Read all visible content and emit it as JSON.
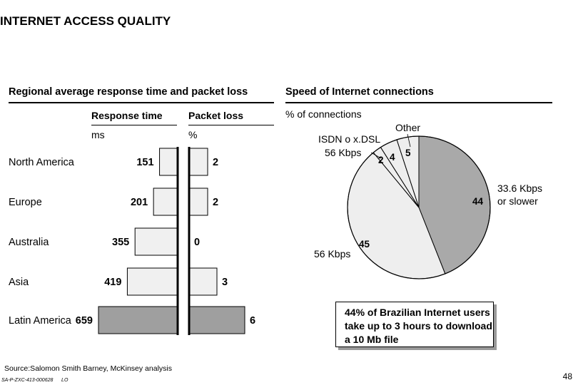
{
  "title": "INTERNET ACCESS QUALITY",
  "left": {
    "heading": "Regional average response time and packet loss",
    "col1": {
      "label": "Response time",
      "unit": "ms"
    },
    "col2": {
      "label": "Packet loss",
      "unit": "%"
    }
  },
  "right": {
    "heading": "Speed of Internet connections",
    "unit": "% of connections",
    "callout": "44% of Brazilian Internet users take up to 3 hours to download a 10 Mb file"
  },
  "source": "Source:Salomon Smith Barney, McKinsey analysis",
  "footer_code": "SA-P-ZXC-413-000628",
  "footer_tag": "LO",
  "page_number": "48",
  "colors": {
    "pie_dark": "#a9a9a9",
    "pie_light": "#eeeeee",
    "bar_light": "#f0f0f0",
    "bar_dark": "#9f9f9f"
  },
  "chart_data": [
    {
      "type": "bar",
      "categories": [
        "North America",
        "Europe",
        "Australia",
        "Asia",
        "Latin America"
      ],
      "series": [
        {
          "name": "Response time",
          "values": [
            151,
            201,
            355,
            419,
            659
          ]
        },
        {
          "name": "Packet loss",
          "values": [
            2,
            2,
            0,
            3,
            6
          ]
        }
      ],
      "xlabel": "",
      "ylabel": ""
    },
    {
      "type": "pie",
      "slices": [
        {
          "label": "33.6 Kbps or slower",
          "value": 44
        },
        {
          "label": "56 Kbps",
          "value": 45
        },
        {
          "label": "ISDN o x.DSL 56 Kbps",
          "value": 2
        },
        {
          "label": "",
          "value": 4
        },
        {
          "label": "Other",
          "value": 5
        }
      ]
    }
  ]
}
